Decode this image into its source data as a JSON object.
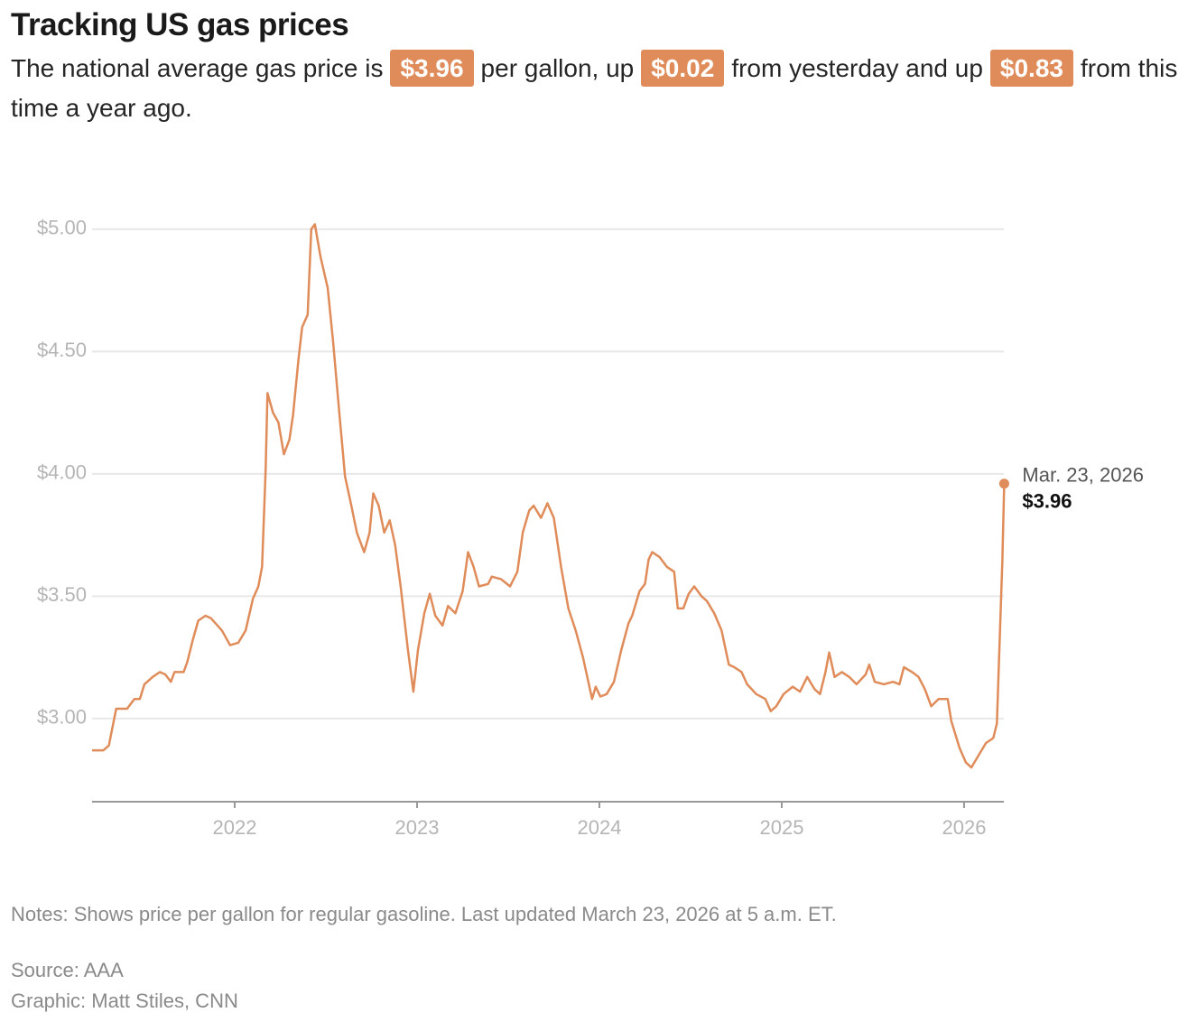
{
  "chart_data": {
    "type": "line",
    "title": "Tracking US gas prices",
    "subtitle": [
      "The national average gas price is",
      "$3.96",
      "per gallon, up",
      "$0.02",
      "from yesterday and up",
      "$0.83",
      "from this time a year ago."
    ],
    "color": "#e08c5a",
    "x": [
      2021.218,
      2021.28,
      2021.31,
      2021.35,
      2021.41,
      2021.45,
      2021.48,
      2021.505,
      2021.55,
      2021.59,
      2021.62,
      2021.65,
      2021.67,
      2021.72,
      2021.74,
      2021.77,
      2021.8,
      2021.84,
      2021.87,
      2021.93,
      2021.975,
      2022.02,
      2022.06,
      2022.1,
      2022.13,
      2022.15,
      2022.17,
      2022.18,
      2022.21,
      2022.24,
      2022.27,
      2022.3,
      2022.32,
      2022.35,
      2022.37,
      2022.4,
      2022.42,
      2022.44,
      2022.47,
      2022.51,
      2022.54,
      2022.575,
      2022.605,
      2022.64,
      2022.67,
      2022.71,
      2022.74,
      2022.76,
      2022.79,
      2022.82,
      2022.85,
      2022.88,
      2022.91,
      2022.95,
      2022.98,
      2023.005,
      2023.04,
      2023.07,
      2023.1,
      2023.14,
      2023.17,
      2023.21,
      2023.25,
      2023.28,
      2023.31,
      2023.34,
      2023.39,
      2023.41,
      2023.46,
      2023.51,
      2023.55,
      2023.58,
      2023.615,
      2023.64,
      2023.68,
      2023.715,
      2023.75,
      2023.79,
      2023.83,
      2023.87,
      2023.91,
      2023.96,
      2023.98,
      2024.005,
      2024.04,
      2024.08,
      2024.12,
      2024.16,
      2024.18,
      2024.22,
      2024.25,
      2024.27,
      2024.29,
      2024.33,
      2024.37,
      2024.41,
      2024.43,
      2024.46,
      2024.49,
      2024.52,
      2024.56,
      2024.59,
      2024.63,
      2024.67,
      2024.71,
      2024.74,
      2024.78,
      2024.81,
      2024.86,
      2024.91,
      2024.94,
      2024.97,
      2025.01,
      2025.06,
      2025.1,
      2025.14,
      2025.18,
      2025.21,
      2025.24,
      2025.26,
      2025.29,
      2025.33,
      2025.37,
      2025.41,
      2025.46,
      2025.48,
      2025.51,
      2025.56,
      2025.61,
      2025.645,
      2025.67,
      2025.715,
      2025.75,
      2025.785,
      2025.82,
      2025.86,
      2025.91,
      2025.93,
      2025.975,
      2026.01,
      2026.04,
      2026.08,
      2026.12,
      2026.16,
      2026.18,
      2026.2,
      2026.21,
      2026.22
    ],
    "values": [
      2.87,
      2.87,
      2.89,
      3.04,
      3.04,
      3.08,
      3.08,
      3.14,
      3.17,
      3.19,
      3.18,
      3.15,
      3.19,
      3.19,
      3.23,
      3.32,
      3.4,
      3.42,
      3.41,
      3.36,
      3.3,
      3.31,
      3.36,
      3.49,
      3.54,
      3.62,
      4.02,
      4.33,
      4.25,
      4.21,
      4.08,
      4.14,
      4.24,
      4.47,
      4.6,
      4.65,
      5.0,
      5.02,
      4.89,
      4.76,
      4.54,
      4.24,
      3.99,
      3.87,
      3.76,
      3.68,
      3.76,
      3.92,
      3.87,
      3.76,
      3.81,
      3.71,
      3.54,
      3.28,
      3.11,
      3.28,
      3.43,
      3.51,
      3.42,
      3.38,
      3.46,
      3.43,
      3.52,
      3.68,
      3.62,
      3.54,
      3.55,
      3.58,
      3.57,
      3.54,
      3.6,
      3.76,
      3.85,
      3.87,
      3.82,
      3.88,
      3.82,
      3.62,
      3.45,
      3.36,
      3.25,
      3.08,
      3.13,
      3.09,
      3.1,
      3.15,
      3.28,
      3.39,
      3.42,
      3.52,
      3.55,
      3.65,
      3.68,
      3.66,
      3.62,
      3.6,
      3.45,
      3.45,
      3.51,
      3.54,
      3.5,
      3.48,
      3.43,
      3.36,
      3.22,
      3.21,
      3.19,
      3.14,
      3.1,
      3.08,
      3.03,
      3.05,
      3.1,
      3.13,
      3.11,
      3.17,
      3.12,
      3.1,
      3.19,
      3.27,
      3.17,
      3.19,
      3.17,
      3.14,
      3.18,
      3.22,
      3.15,
      3.14,
      3.15,
      3.14,
      3.21,
      3.19,
      3.17,
      3.12,
      3.05,
      3.08,
      3.08,
      2.99,
      2.88,
      2.82,
      2.8,
      2.85,
      2.9,
      2.92,
      2.98,
      3.43,
      3.65,
      3.96
    ],
    "xlim": [
      2021.218,
      2026.218
    ],
    "xticks": [
      2022,
      2023,
      2024,
      2025,
      2026
    ],
    "ylim": [
      2.66,
      5.1
    ],
    "yticks": [
      {
        "value": 3,
        "label": "$3.00"
      },
      {
        "value": 3.5,
        "label": "$3.50"
      },
      {
        "value": 4,
        "label": "$4.00"
      },
      {
        "value": 4.5,
        "label": "$4.50"
      },
      {
        "value": 5,
        "label": "$5.00"
      }
    ],
    "grid": true,
    "annotation": {
      "text": "Mar. 23, 2026",
      "label": "$3.96"
    },
    "notes": "Notes: Shows price per gallon for regular gasoline. Last updated March 23, 2026 at 5 a.m. ET.",
    "source": "Source: AAA",
    "credit": "Graphic: Matt Stiles, CNN"
  }
}
